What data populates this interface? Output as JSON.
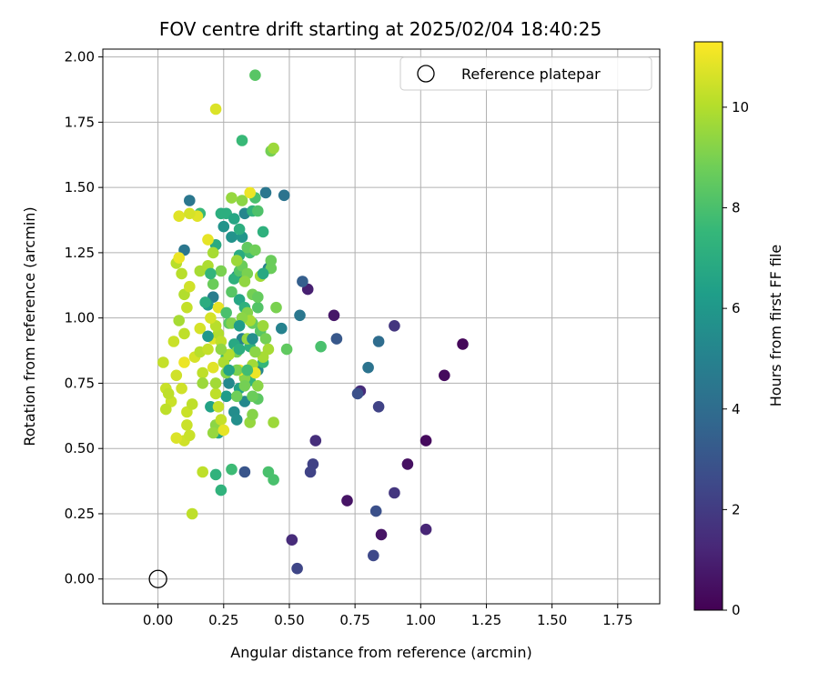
{
  "chart_data": {
    "type": "scatter",
    "title": "FOV centre drift starting at 2025/02/04 18:40:25",
    "xlabel": "Angular distance from reference (arcmin)",
    "ylabel": "Rotation from reference (arcmin)",
    "xlim": [
      -0.21,
      1.91
    ],
    "ylim": [
      -0.095,
      2.03
    ],
    "xticks": [
      0.0,
      0.25,
      0.5,
      0.75,
      1.0,
      1.25,
      1.5,
      1.75
    ],
    "xtick_labels": [
      "0.00",
      "0.25",
      "0.50",
      "0.75",
      "1.00",
      "1.25",
      "1.50",
      "1.75"
    ],
    "yticks": [
      0.0,
      0.25,
      0.5,
      0.75,
      1.0,
      1.25,
      1.5,
      1.75,
      2.0
    ],
    "ytick_labels": [
      "0.00",
      "0.25",
      "0.50",
      "0.75",
      "1.00",
      "1.25",
      "1.50",
      "1.75",
      "2.00"
    ],
    "grid": true,
    "legend": {
      "position": "top-right",
      "entries": [
        {
          "label": "Reference platepar",
          "marker": "open-circle"
        }
      ]
    },
    "reference_point": {
      "x": 0.0,
      "y": 0.0
    },
    "colorbar": {
      "label": "Hours from first FF file",
      "colormap": "viridis",
      "range": [
        0,
        11.3
      ],
      "ticks": [
        0,
        2,
        4,
        6,
        8,
        10
      ],
      "tick_labels": [
        "0",
        "2",
        "4",
        "6",
        "8",
        "10"
      ]
    },
    "points": [
      [
        1.16,
        0.9,
        0.2
      ],
      [
        1.09,
        0.78,
        0.3
      ],
      [
        1.02,
        0.53,
        0.3
      ],
      [
        0.95,
        0.44,
        0.5
      ],
      [
        0.85,
        0.17,
        0.6
      ],
      [
        0.72,
        0.3,
        0.6
      ],
      [
        0.67,
        1.01,
        0.7
      ],
      [
        0.57,
        1.11,
        1.0
      ],
      [
        0.51,
        0.15,
        1.4
      ],
      [
        0.77,
        0.72,
        1.4
      ],
      [
        1.02,
        0.19,
        1.2
      ],
      [
        0.6,
        0.53,
        1.5
      ],
      [
        0.9,
        0.97,
        1.8
      ],
      [
        0.9,
        0.33,
        1.8
      ],
      [
        0.59,
        0.44,
        2.2
      ],
      [
        0.58,
        0.41,
        2.3
      ],
      [
        0.53,
        0.04,
        2.4
      ],
      [
        0.82,
        0.09,
        2.5
      ],
      [
        0.84,
        0.66,
        2.3
      ],
      [
        0.83,
        0.26,
        2.8
      ],
      [
        0.76,
        0.71,
        2.8
      ],
      [
        0.33,
        0.41,
        3.0
      ],
      [
        0.68,
        0.92,
        3.1
      ],
      [
        0.55,
        1.14,
        3.4
      ],
      [
        0.84,
        0.91,
        4.0
      ],
      [
        0.8,
        0.81,
        4.3
      ],
      [
        0.48,
        1.47,
        4.3
      ],
      [
        0.41,
        1.48,
        4.5
      ],
      [
        0.54,
        1.01,
        4.5
      ],
      [
        0.47,
        0.96,
        5.0
      ],
      [
        0.12,
        1.45,
        4.5
      ],
      [
        0.1,
        1.26,
        4.5
      ],
      [
        0.21,
        1.08,
        4.8
      ],
      [
        0.3,
        1.16,
        5.1
      ],
      [
        0.33,
        1.4,
        5.2
      ],
      [
        0.42,
        1.19,
        5.0
      ],
      [
        0.32,
        0.92,
        5.0
      ],
      [
        0.38,
        0.8,
        5.2
      ],
      [
        0.27,
        0.75,
        5.3
      ],
      [
        0.33,
        0.68,
        5.3
      ],
      [
        0.29,
        0.64,
        5.5
      ],
      [
        0.3,
        0.61,
        5.6
      ],
      [
        0.25,
        1.35,
        5.8
      ],
      [
        0.28,
        1.31,
        5.8
      ],
      [
        0.32,
        1.31,
        5.9
      ],
      [
        0.19,
        1.05,
        6.1
      ],
      [
        0.26,
        0.7,
        6.2
      ],
      [
        0.31,
        0.73,
        6.5
      ],
      [
        0.2,
        0.66,
        6.5
      ],
      [
        0.23,
        0.56,
        6.6
      ],
      [
        0.29,
        0.9,
        6.8
      ],
      [
        0.31,
        1.24,
        6.9
      ],
      [
        0.22,
        1.28,
        6.9
      ],
      [
        0.31,
        1.07,
        6.7
      ],
      [
        0.35,
        0.89,
        7.2
      ],
      [
        0.24,
        1.4,
        7.1
      ],
      [
        0.26,
        1.4,
        7.1
      ],
      [
        0.36,
        1.41,
        7.3
      ],
      [
        0.4,
        1.33,
        7.2
      ],
      [
        0.31,
        1.34,
        7.1
      ],
      [
        0.16,
        1.4,
        7.6
      ],
      [
        0.22,
        0.4,
        7.3
      ],
      [
        0.24,
        0.34,
        7.3
      ],
      [
        0.28,
        0.42,
        7.7
      ],
      [
        0.32,
        1.68,
        7.6
      ],
      [
        0.29,
        1.15,
        7.2
      ],
      [
        0.33,
        1.04,
        7.2
      ],
      [
        0.4,
        0.83,
        7.5
      ],
      [
        0.35,
        0.76,
        7.4
      ],
      [
        0.26,
        0.85,
        7.8
      ],
      [
        0.35,
        1.25,
        7.8
      ],
      [
        0.42,
        0.41,
        8.0
      ],
      [
        0.44,
        0.38,
        8.0
      ],
      [
        0.37,
        1.93,
        8.3
      ],
      [
        0.38,
        1.41,
        8.1
      ],
      [
        0.37,
        1.46,
        8.0
      ],
      [
        0.31,
        1.18,
        8.2
      ],
      [
        0.38,
        1.04,
        8.2
      ],
      [
        0.39,
        0.95,
        8.3
      ],
      [
        0.38,
        0.69,
        8.4
      ],
      [
        0.27,
        0.98,
        8.4
      ],
      [
        0.62,
        0.89,
        8.0
      ],
      [
        0.49,
        0.88,
        8.5
      ],
      [
        0.34,
        1.27,
        8.5
      ],
      [
        0.32,
        1.2,
        8.7
      ],
      [
        0.43,
        1.19,
        8.7
      ],
      [
        0.43,
        1.64,
        8.9
      ],
      [
        0.43,
        1.22,
        8.7
      ],
      [
        0.36,
        0.98,
        8.6
      ],
      [
        0.3,
        0.87,
        8.9
      ],
      [
        0.41,
        0.92,
        8.9
      ],
      [
        0.45,
        1.04,
        9.0
      ],
      [
        0.34,
        1.17,
        9.0
      ],
      [
        0.34,
        1.02,
        9.2
      ],
      [
        0.33,
        0.77,
        9.2
      ],
      [
        0.35,
        0.6,
        9.5
      ],
      [
        0.38,
        0.74,
        9.3
      ],
      [
        0.22,
        0.59,
        9.3
      ],
      [
        0.21,
        0.56,
        9.5
      ],
      [
        0.44,
        0.6,
        9.6
      ],
      [
        0.44,
        1.65,
        9.6
      ],
      [
        0.32,
        1.45,
        9.3
      ],
      [
        0.28,
        1.46,
        9.5
      ],
      [
        0.39,
        1.16,
        9.7
      ],
      [
        0.36,
        0.82,
        9.7
      ],
      [
        0.35,
        0.99,
        9.8
      ],
      [
        0.4,
        0.85,
        9.8
      ],
      [
        0.21,
        1.25,
        9.8
      ],
      [
        0.16,
        1.18,
        9.8
      ],
      [
        0.19,
        1.2,
        9.9
      ],
      [
        0.09,
        1.17,
        10.1
      ],
      [
        0.07,
        1.21,
        10.1
      ],
      [
        0.1,
        1.09,
        10.0
      ],
      [
        0.08,
        0.99,
        9.8
      ],
      [
        0.1,
        0.94,
        10.2
      ],
      [
        0.17,
        0.79,
        10.2
      ],
      [
        0.22,
        0.71,
        10.2
      ],
      [
        0.23,
        0.66,
        10.3
      ],
      [
        0.24,
        0.61,
        10.3
      ],
      [
        0.1,
        0.53,
        10.5
      ],
      [
        0.12,
        0.55,
        10.4
      ],
      [
        0.11,
        0.64,
        10.4
      ],
      [
        0.13,
        0.67,
        10.2
      ],
      [
        0.07,
        0.78,
        10.5
      ],
      [
        0.09,
        0.73,
        10.5
      ],
      [
        0.05,
        0.68,
        10.4
      ],
      [
        0.07,
        0.54,
        10.7
      ],
      [
        0.11,
        0.59,
        10.4
      ],
      [
        0.02,
        0.83,
        10.3
      ],
      [
        0.03,
        0.73,
        10.4
      ],
      [
        0.04,
        0.71,
        10.2
      ],
      [
        0.03,
        0.65,
        10.2
      ],
      [
        0.06,
        0.91,
        10.4
      ],
      [
        0.16,
        0.96,
        10.6
      ],
      [
        0.21,
        0.92,
        10.8
      ],
      [
        0.21,
        0.81,
        10.8
      ],
      [
        0.23,
        1.04,
        10.9
      ],
      [
        0.19,
        1.3,
        10.9
      ],
      [
        0.15,
        1.39,
        10.8
      ],
      [
        0.08,
        1.39,
        10.8
      ],
      [
        0.12,
        1.4,
        10.6
      ],
      [
        0.08,
        1.23,
        11.0
      ],
      [
        0.1,
        0.83,
        11.0
      ],
      [
        0.17,
        0.41,
        10.2
      ],
      [
        0.13,
        0.25,
        10.2
      ],
      [
        0.22,
        1.8,
        10.7
      ],
      [
        0.35,
        1.48,
        11.0
      ],
      [
        0.37,
        0.79,
        11.0
      ],
      [
        0.31,
        0.8,
        11.0
      ],
      [
        0.25,
        0.57,
        10.9
      ],
      [
        0.12,
        1.12,
        10.5
      ],
      [
        0.11,
        1.04,
        10.3
      ],
      [
        0.14,
        0.85,
        10.6
      ],
      [
        0.16,
        0.87,
        10.1
      ],
      [
        0.19,
        0.88,
        10.3
      ],
      [
        0.23,
        0.94,
        10.0
      ],
      [
        0.25,
        0.83,
        9.9
      ],
      [
        0.27,
        0.86,
        10.0
      ],
      [
        0.22,
        0.97,
        10.1
      ],
      [
        0.24,
        0.91,
        10.2
      ],
      [
        0.2,
        1.0,
        10.6
      ],
      [
        0.17,
        0.75,
        9.6
      ],
      [
        0.22,
        0.75,
        9.7
      ],
      [
        0.24,
        0.88,
        9.4
      ],
      [
        0.26,
        0.79,
        9.2
      ],
      [
        0.3,
        0.8,
        9.0
      ],
      [
        0.28,
        0.98,
        9.1
      ],
      [
        0.32,
        1.0,
        9.3
      ],
      [
        0.34,
        0.92,
        9.5
      ],
      [
        0.37,
        0.87,
        9.3
      ],
      [
        0.4,
        0.97,
        9.6
      ],
      [
        0.42,
        0.88,
        9.8
      ],
      [
        0.3,
        0.7,
        8.8
      ],
      [
        0.33,
        0.74,
        8.9
      ],
      [
        0.36,
        0.7,
        8.7
      ],
      [
        0.36,
        0.63,
        9.2
      ],
      [
        0.3,
        1.22,
        9.6
      ],
      [
        0.33,
        1.14,
        9.4
      ],
      [
        0.36,
        1.09,
        8.9
      ],
      [
        0.38,
        1.08,
        8.6
      ],
      [
        0.28,
        1.1,
        8.3
      ],
      [
        0.26,
        1.02,
        8.0
      ],
      [
        0.24,
        1.18,
        9.0
      ],
      [
        0.21,
        1.13,
        8.7
      ],
      [
        0.2,
        1.17,
        7.4
      ],
      [
        0.18,
        1.06,
        7.0
      ],
      [
        0.19,
        0.93,
        6.0
      ],
      [
        0.31,
        0.97,
        6.2
      ],
      [
        0.31,
        0.88,
        7.0
      ],
      [
        0.27,
        0.8,
        6.5
      ],
      [
        0.34,
        0.8,
        7.8
      ],
      [
        0.36,
        0.92,
        5.6
      ],
      [
        0.4,
        1.17,
        6.8
      ],
      [
        0.29,
        1.38,
        6.7
      ],
      [
        0.37,
        1.26,
        8.8
      ]
    ]
  }
}
